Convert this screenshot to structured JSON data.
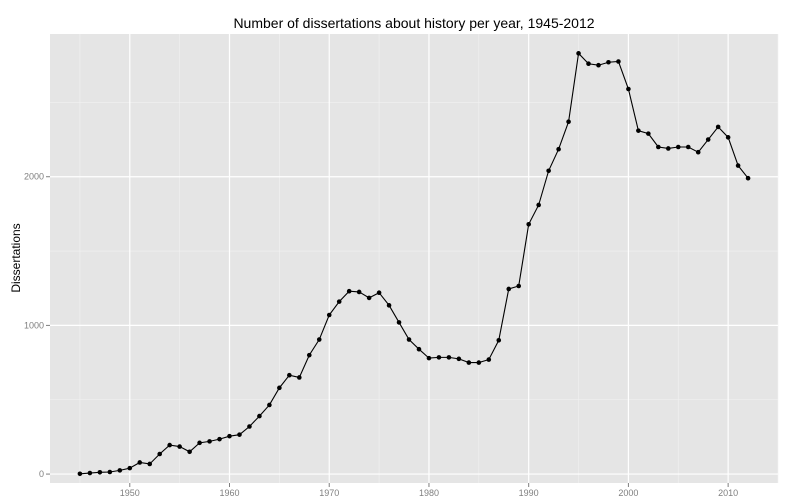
{
  "chart_data": {
    "type": "line",
    "title": "Number of dissertations about history per year, 1945-2012",
    "xlabel": "",
    "ylabel": "Dissertations",
    "xlim": [
      1942,
      2015
    ],
    "ylim": [
      -60,
      2960
    ],
    "x_ticks": [
      1950,
      1960,
      1970,
      1980,
      1990,
      2000,
      2010
    ],
    "y_ticks": [
      0,
      1000,
      2000
    ],
    "grid": true,
    "colors": {
      "panel": "#e5e5e5",
      "grid_major": "#ffffff",
      "grid_minor": "#f2f2f2",
      "line": "#000000"
    },
    "x": [
      1945,
      1946,
      1947,
      1948,
      1949,
      1950,
      1951,
      1952,
      1953,
      1954,
      1955,
      1956,
      1957,
      1958,
      1959,
      1960,
      1961,
      1962,
      1963,
      1964,
      1965,
      1966,
      1967,
      1968,
      1969,
      1970,
      1971,
      1972,
      1973,
      1974,
      1975,
      1976,
      1977,
      1978,
      1979,
      1980,
      1981,
      1982,
      1983,
      1984,
      1985,
      1986,
      1987,
      1988,
      1989,
      1990,
      1991,
      1992,
      1993,
      1994,
      1995,
      1996,
      1997,
      1998,
      1999,
      2000,
      2001,
      2002,
      2003,
      2004,
      2005,
      2006,
      2007,
      2008,
      2009,
      2010,
      2011,
      2012
    ],
    "y": [
      2,
      7,
      12,
      14,
      25,
      40,
      78,
      68,
      135,
      195,
      185,
      150,
      210,
      220,
      235,
      255,
      265,
      320,
      390,
      465,
      580,
      665,
      650,
      800,
      905,
      1070,
      1160,
      1230,
      1225,
      1185,
      1220,
      1135,
      1020,
      905,
      840,
      780,
      785,
      785,
      775,
      750,
      750,
      770,
      900,
      1245,
      1265,
      1680,
      1810,
      2040,
      2185,
      2370,
      2830,
      2760,
      2750,
      2770,
      2775,
      2590,
      2310,
      2290,
      2200,
      2190,
      2200,
      2200,
      2165,
      2250,
      2335,
      2265,
      2075,
      1990
    ]
  }
}
